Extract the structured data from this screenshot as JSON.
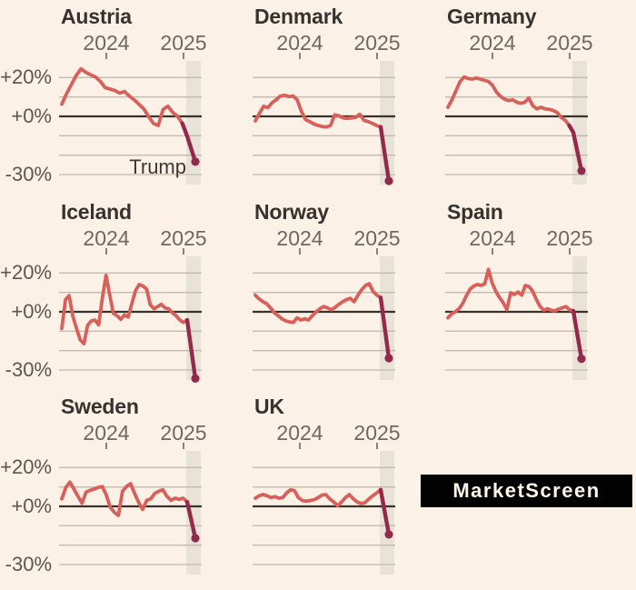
{
  "page": {
    "background": "#fbf1e6"
  },
  "watermark": {
    "label": "MarketScreen",
    "bg": "#020202",
    "text_color": "#fdf6ea"
  },
  "chart_data": {
    "type": "line",
    "unit": "%",
    "x_tick_labels": [
      "2024",
      "2025"
    ],
    "y_tick_labels": [
      "+20%",
      "+0%",
      "-30%"
    ],
    "y_tick_values": [
      20,
      0,
      -30
    ],
    "gridline_values": [
      20,
      10,
      0,
      -10,
      -20,
      -30
    ],
    "ylim": [
      -35,
      28.6
    ],
    "highlight_band_label": "2025",
    "annotation": {
      "text": "Trump",
      "on_chart": "Austria"
    },
    "colors": {
      "line": "#d8605a",
      "recent_line": "#932a4d",
      "dot": "#932a4d",
      "grid": "#c2bab0",
      "zero_line": "#37322d",
      "band": "#e9e2d7"
    },
    "charts": [
      {
        "title": "Austria",
        "show_y_labels": true,
        "annotation": "Trump",
        "dark_points": 3,
        "values": [
          6.3,
          11.7,
          16.4,
          21.1,
          24.5,
          22.7,
          21.4,
          20.3,
          18,
          14.8,
          14.1,
          13.3,
          12,
          12.8,
          10.5,
          8.6,
          6.3,
          3.9,
          0,
          -3.6,
          -4.7,
          3.6,
          5.2,
          2,
          0,
          -3.6,
          -10.2,
          -23.4
        ]
      },
      {
        "title": "Denmark",
        "show_y_labels": false,
        "dark_points": 2,
        "values": [
          -2.3,
          1.6,
          5.2,
          4.5,
          7,
          8.6,
          10.5,
          10.9,
          10.2,
          10.5,
          8.6,
          2.7,
          -1.6,
          -2.7,
          -3.9,
          -4.7,
          -5.2,
          -5.5,
          -4.7,
          0.8,
          0.3,
          -0.8,
          -1.1,
          -0.8,
          -0.5,
          1.1,
          -2,
          -2.7,
          -3.6,
          -4.7,
          -5.5,
          -33.3
        ]
      },
      {
        "title": "Germany",
        "show_y_labels": false,
        "dark_points": 3,
        "values": [
          4.7,
          8.6,
          13.3,
          18,
          20.3,
          19.5,
          19.2,
          19.8,
          19.2,
          18.6,
          18,
          16.1,
          12.5,
          10.2,
          8.9,
          8.1,
          8.6,
          7.3,
          6.7,
          7.3,
          9.4,
          5.5,
          3.9,
          4.7,
          3.9,
          3.6,
          3.1,
          2,
          -0.5,
          -2,
          -4.7,
          -8.3,
          -28.1
        ]
      },
      {
        "title": "Iceland",
        "show_y_labels": true,
        "dark_points": 2,
        "values": [
          -8.6,
          6.3,
          8.3,
          -2.3,
          -8.6,
          -14.5,
          -16.4,
          -7,
          -4.7,
          -4.2,
          -6.7,
          7,
          18.8,
          8.6,
          -0.8,
          -2,
          -3.9,
          -1.6,
          -2.7,
          4.2,
          10.9,
          14.1,
          13.3,
          11.7,
          3.6,
          1.6,
          2.7,
          3.9,
          2,
          1.6,
          -0.5,
          -2,
          -4.2,
          -5.5,
          -4.2,
          -34.4
        ]
      },
      {
        "title": "Norway",
        "show_y_labels": false,
        "dark_points": 2,
        "values": [
          8.6,
          6.7,
          5.2,
          4.2,
          2,
          -0.5,
          -2,
          -3.6,
          -4.7,
          -5.2,
          -5.5,
          -3.1,
          -4.2,
          -3.6,
          -4.2,
          -2,
          0,
          1.6,
          2.7,
          2,
          1.1,
          2.3,
          3.9,
          5.2,
          6.3,
          7,
          5.2,
          8.6,
          11.4,
          13.6,
          14.5,
          10.5,
          8.6,
          7.3,
          -23.9
        ]
      },
      {
        "title": "Spain",
        "show_y_labels": false,
        "dark_points": 2,
        "values": [
          -3.1,
          -1.1,
          0,
          1.6,
          4.2,
          8.3,
          11.7,
          13.3,
          14.1,
          13.6,
          14.5,
          21.9,
          14.8,
          10.5,
          7.3,
          4.7,
          1.1,
          9.8,
          8.9,
          10.2,
          8.6,
          13.6,
          13,
          10.5,
          6.3,
          2.7,
          0.8,
          1.6,
          0.8,
          0.5,
          1.4,
          2,
          2.7,
          1.1,
          0.5,
          -24.2
        ]
      },
      {
        "title": "Sweden",
        "show_y_labels": true,
        "dark_points": 2,
        "values": [
          3.9,
          9.8,
          12.5,
          8.9,
          5.2,
          1.6,
          7.3,
          8.3,
          8.9,
          9.8,
          10.2,
          5.8,
          -0.5,
          -3.1,
          -4.7,
          7.8,
          10.2,
          11.7,
          6.7,
          2,
          -1.6,
          3.1,
          3.9,
          6.7,
          7.8,
          8.6,
          5.2,
          3.1,
          4.2,
          3.6,
          4.2,
          2.3,
          -16.4
        ]
      },
      {
        "title": "UK",
        "show_y_labels": false,
        "dark_points": 2,
        "values": [
          4.2,
          5.5,
          6.1,
          5.5,
          4.5,
          5,
          4.2,
          4.5,
          7,
          8.6,
          8.1,
          4.5,
          3,
          2.7,
          3,
          3.4,
          4.5,
          5.8,
          6.1,
          3.9,
          2.3,
          0.3,
          2.3,
          4.5,
          6.1,
          3.9,
          2.3,
          1.4,
          1.9,
          3.9,
          5.5,
          7,
          8.6,
          -14.5
        ]
      }
    ]
  }
}
